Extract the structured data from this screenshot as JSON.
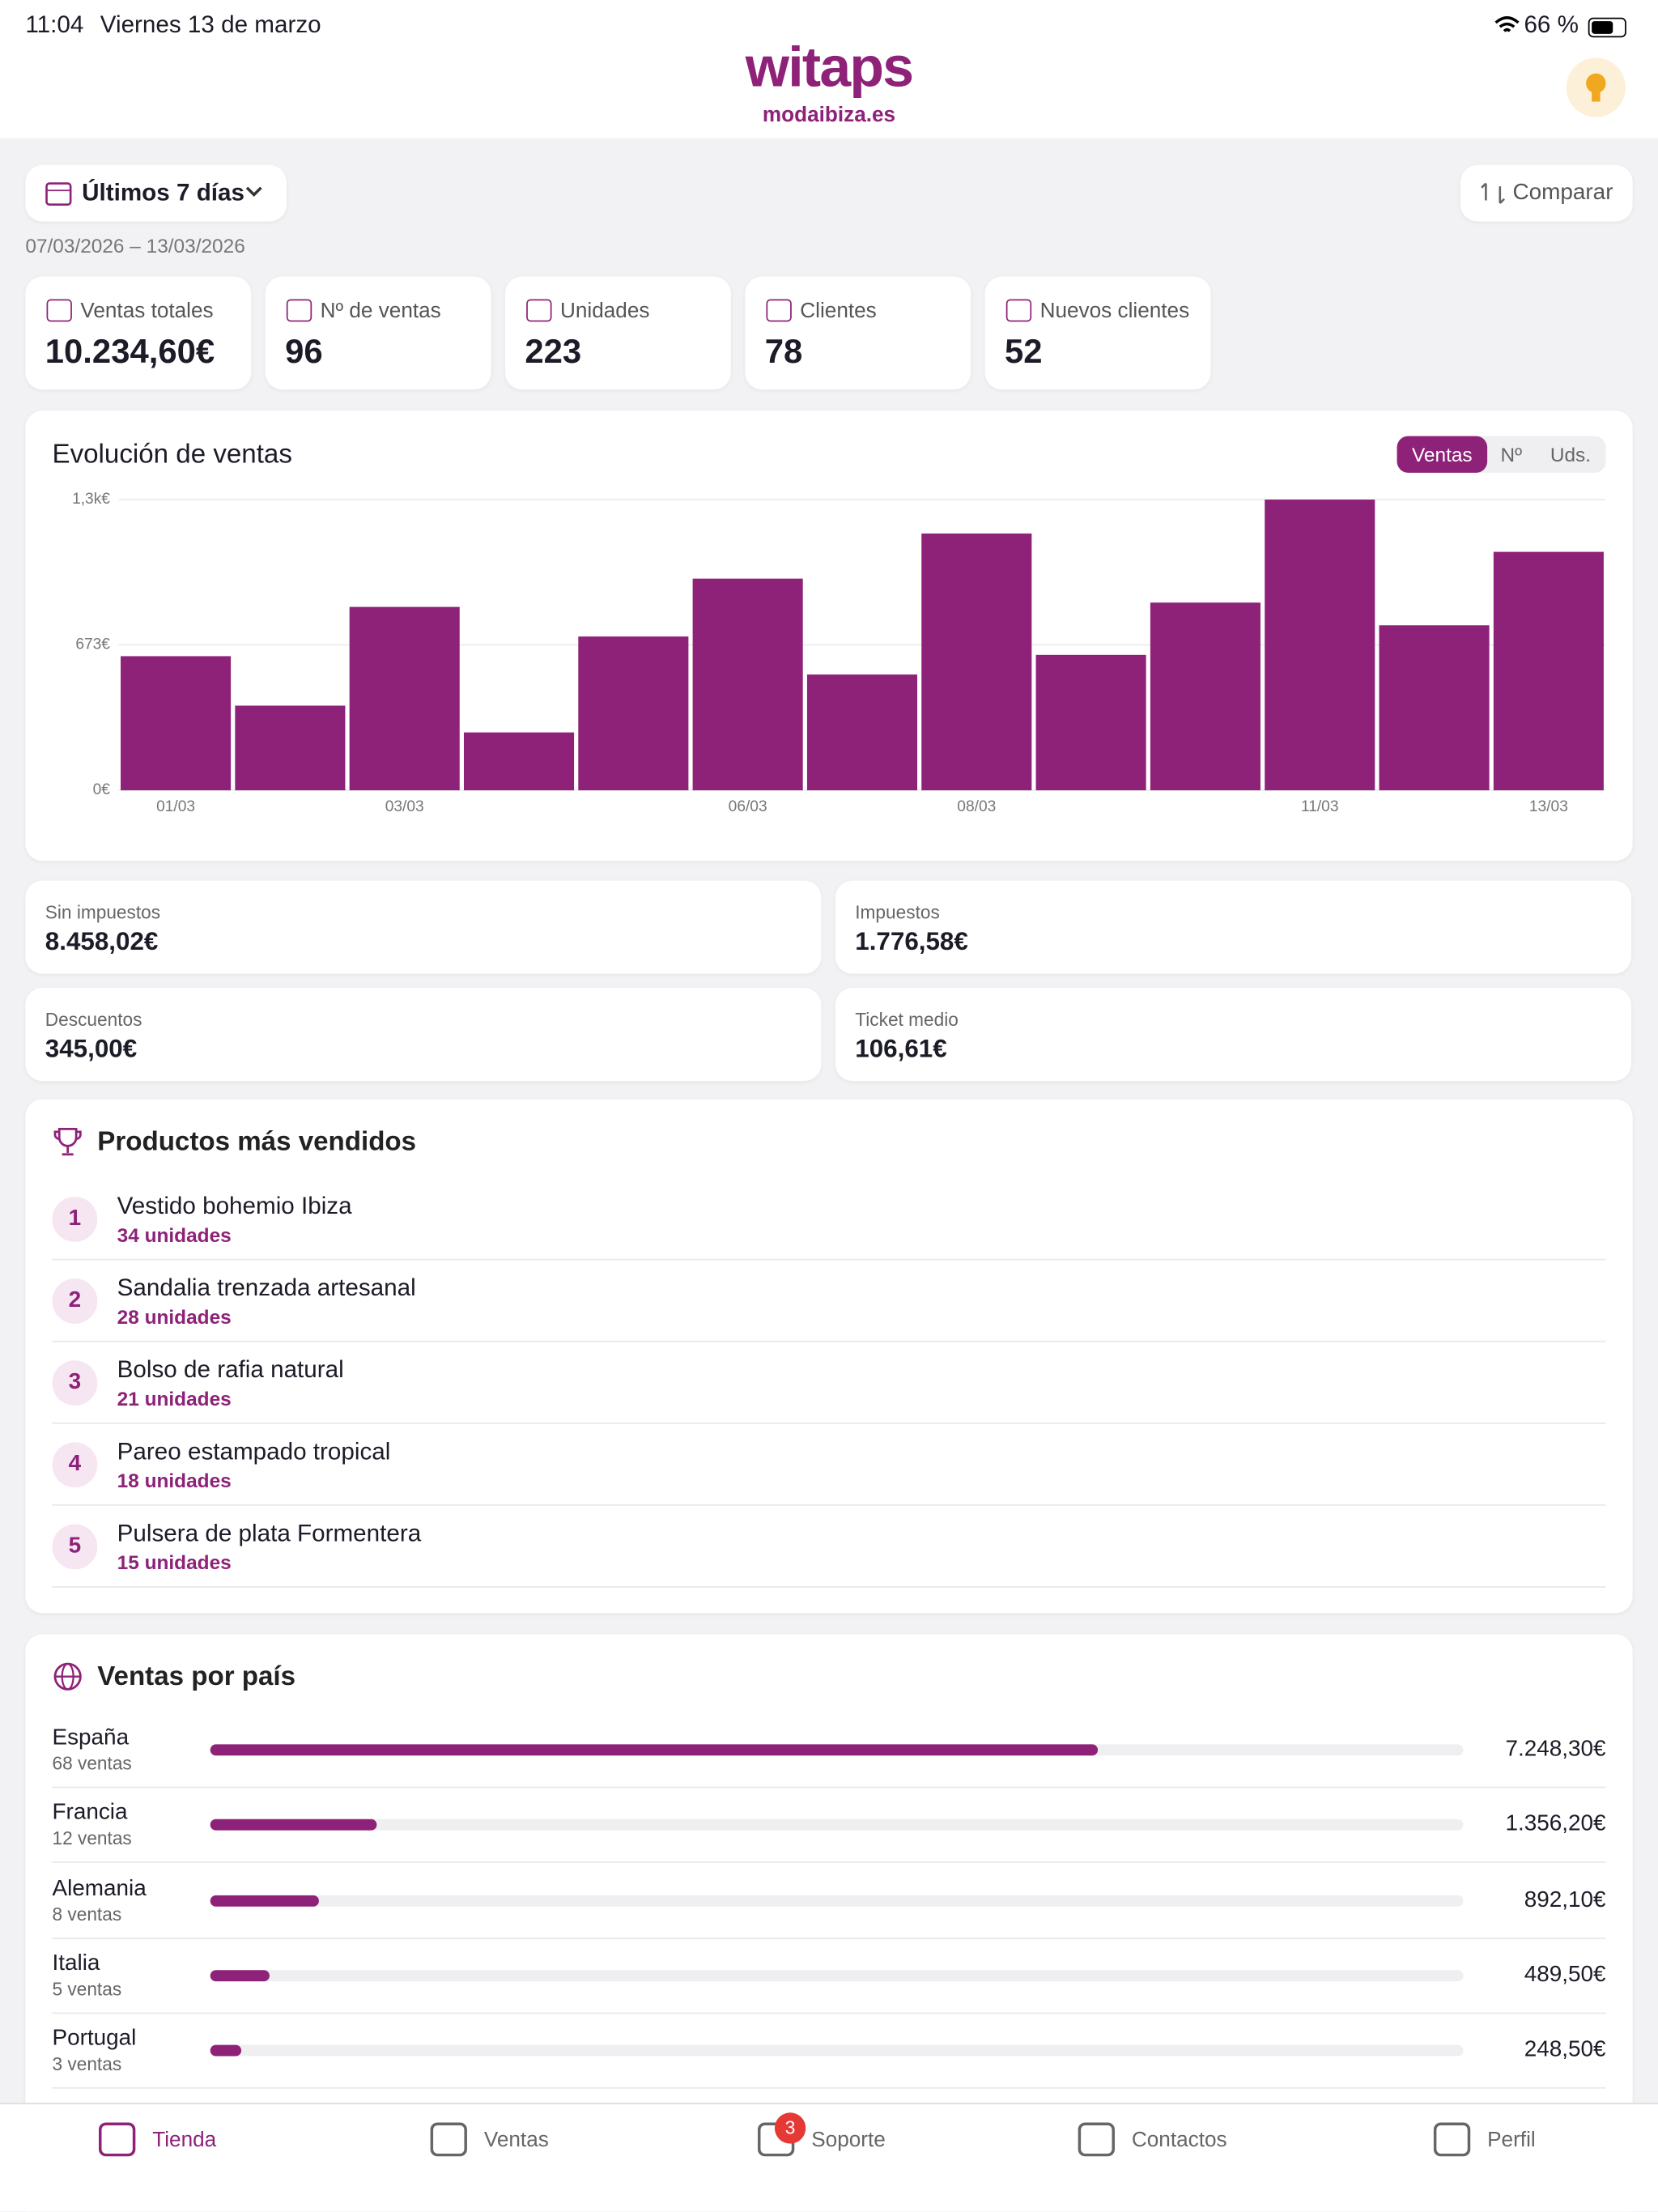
{
  "status": {
    "time": "11:04",
    "date": "Viernes 13 de marzo",
    "battery": "66 %"
  },
  "header": {
    "logo": "witaps",
    "store": "modaibiza.es"
  },
  "filters": {
    "period": "Últimos 7 días",
    "compare": "Comparar",
    "range": "07/03/2026 – 13/03/2026"
  },
  "kpis": [
    {
      "label": "Ventas totales",
      "value": "10.234,60€"
    },
    {
      "label": "Nº de ventas",
      "value": "96"
    },
    {
      "label": "Unidades",
      "value": "223"
    },
    {
      "label": "Clientes",
      "value": "78"
    },
    {
      "label": "Nuevos clientes",
      "value": "52"
    }
  ],
  "chart_data": [
    {
      "type": "bar",
      "title": "Evolución de ventas",
      "toggles": [
        "Ventas",
        "Nº",
        "Uds."
      ],
      "categories": [
        "01/03",
        null,
        "03/03",
        null,
        null,
        "06/03",
        null,
        "08/03",
        null,
        null,
        "11/03",
        null,
        "13/03"
      ],
      "values": [
        621,
        392,
        849,
        268,
        712,
        980,
        536,
        1189,
        627,
        869,
        1346,
        764,
        1104
      ],
      "color": "#8e2279",
      "ylim": [
        0,
        1346
      ],
      "yticks": [
        {
          "value": 0,
          "label": "0€"
        },
        {
          "value": 673,
          "label": "673€"
        },
        {
          "value": 1346,
          "label": "1,3k€"
        }
      ],
      "grid": true
    },
    {
      "type": "hbar",
      "title": "Ventas por país",
      "categories": [
        "España",
        "Francia",
        "Alemania",
        "Italia",
        "Portugal"
      ],
      "subtitles": [
        "68 ventas",
        "12 ventas",
        "8 ventas",
        "5 ventas",
        "3 ventas"
      ],
      "values": [
        7248.3,
        1356.2,
        892.1,
        489.5,
        248.5
      ],
      "value_labels": [
        "7.248,30€",
        "1.356,20€",
        "892,10€",
        "489,50€",
        "248,50€"
      ],
      "color": "#8e2279",
      "xlim": [
        0,
        10234.6
      ]
    }
  ],
  "summary": [
    {
      "label": "Sin impuestos",
      "value": "8.458,02€"
    },
    {
      "label": "Impuestos",
      "value": "1.776,58€"
    },
    {
      "label": "Descuentos",
      "value": "345,00€"
    },
    {
      "label": "Ticket medio",
      "value": "106,61€"
    }
  ],
  "top_products": {
    "title": "Productos más vendidos",
    "items": [
      {
        "rank": "1",
        "name": "Vestido bohemio Ibiza",
        "units": "34 unidades"
      },
      {
        "rank": "2",
        "name": "Sandalia trenzada artesanal",
        "units": "28 unidades"
      },
      {
        "rank": "3",
        "name": "Bolso de rafia natural",
        "units": "21 unidades"
      },
      {
        "rank": "4",
        "name": "Pareo estampado tropical",
        "units": "18 unidades"
      },
      {
        "rank": "5",
        "name": "Pulsera de plata Formentera",
        "units": "15 unidades"
      }
    ]
  },
  "nav": {
    "items": [
      "Tienda",
      "Ventas",
      "Soporte",
      "Contactos",
      "Perfil"
    ],
    "badge": "3"
  }
}
